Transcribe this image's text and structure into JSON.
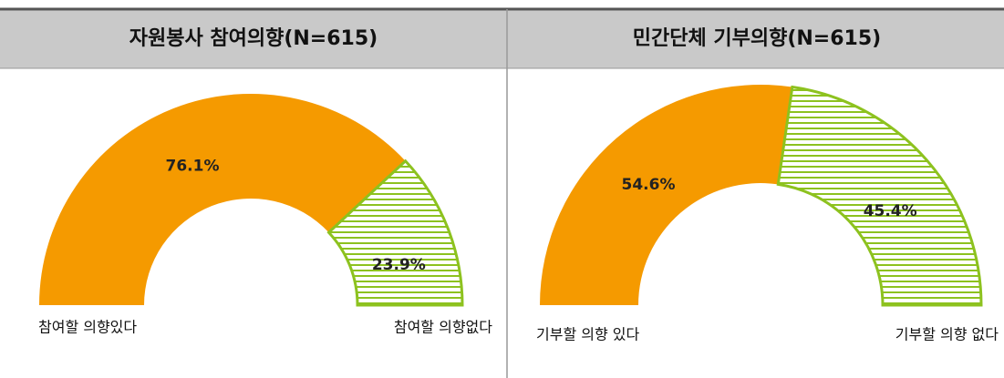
{
  "chart_data": [
    {
      "type": "half-donut",
      "title": "자원봉사 참여의향(N=615)",
      "categories": [
        "참여할 의향있다",
        "참여할 의향없다"
      ],
      "values": [
        76.1,
        23.9
      ],
      "value_labels": [
        "76.1%",
        "23.9%"
      ],
      "colors": [
        "#f59a00",
        "#8dc21f"
      ]
    },
    {
      "type": "half-donut",
      "title": "민간단체 기부의향(N=615)",
      "categories": [
        "기부할 의향 있다",
        "기부할 의향 없다"
      ],
      "values": [
        54.6,
        45.4
      ],
      "value_labels": [
        "54.6%",
        "45.4%"
      ],
      "colors": [
        "#f59a00",
        "#8dc21f"
      ]
    }
  ]
}
